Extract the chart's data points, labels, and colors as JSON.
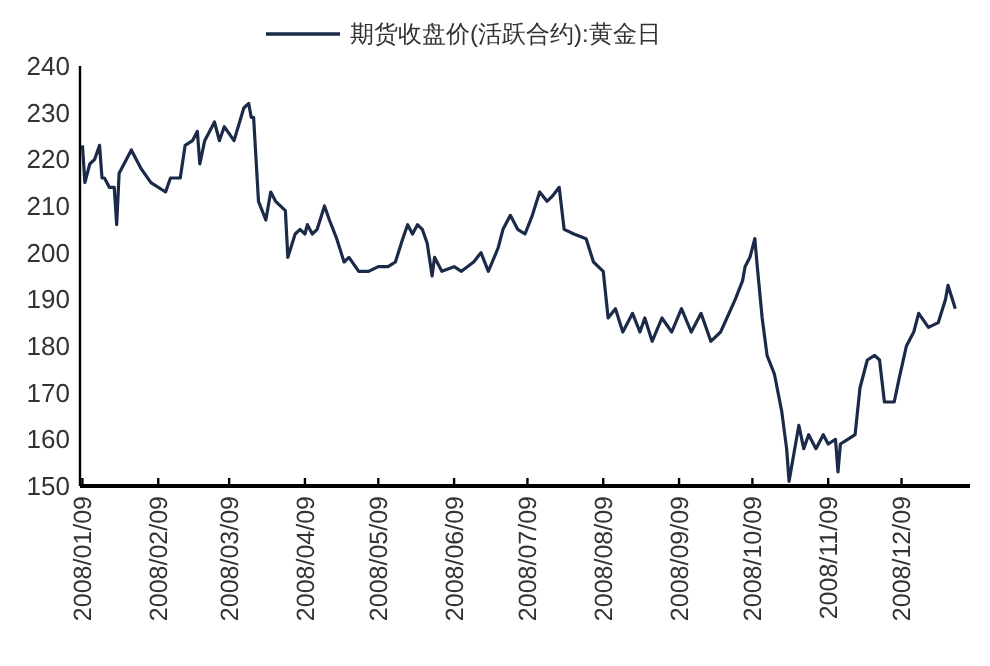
{
  "chart_data": {
    "type": "line",
    "legend": "top",
    "grid": false,
    "xlim": [
      "2008-01-08",
      "2009-01-06"
    ],
    "xticks": [
      {
        "value": "2008-01-09",
        "label": "2008/01/09"
      },
      {
        "value": "2008-02-09",
        "label": "2008/02/09"
      },
      {
        "value": "2008-03-09",
        "label": "2008/03/09"
      },
      {
        "value": "2008-04-09",
        "label": "2008/04/09"
      },
      {
        "value": "2008-05-09",
        "label": "2008/05/09"
      },
      {
        "value": "2008-06-09",
        "label": "2008/06/09"
      },
      {
        "value": "2008-07-09",
        "label": "2008/07/09"
      },
      {
        "value": "2008-08-09",
        "label": "2008/08/09"
      },
      {
        "value": "2008-09-09",
        "label": "2008/09/09"
      },
      {
        "value": "2008-10-09",
        "label": "2008/10/09"
      },
      {
        "value": "2008-11-09",
        "label": "2008/11/09"
      },
      {
        "value": "2008-12-09",
        "label": "2008/12/09"
      }
    ],
    "ylim": [
      150,
      240
    ],
    "yticks": [
      150,
      160,
      170,
      180,
      190,
      200,
      210,
      220,
      230,
      240
    ],
    "x": [
      "2008-01-09",
      "2008-01-10",
      "2008-01-12",
      "2008-01-14",
      "2008-01-16",
      "2008-01-17",
      "2008-01-18",
      "2008-01-20",
      "2008-01-22",
      "2008-01-23",
      "2008-01-24",
      "2008-01-26",
      "2008-01-29",
      "2008-02-02",
      "2008-02-06",
      "2008-02-12",
      "2008-02-14",
      "2008-02-18",
      "2008-02-20",
      "2008-02-23",
      "2008-02-25",
      "2008-02-26",
      "2008-02-28",
      "2008-03-03",
      "2008-03-05",
      "2008-03-07",
      "2008-03-11",
      "2008-03-15",
      "2008-03-17",
      "2008-03-18",
      "2008-03-19",
      "2008-03-21",
      "2008-03-24",
      "2008-03-26",
      "2008-03-28",
      "2008-04-01",
      "2008-04-02",
      "2008-04-05",
      "2008-04-07",
      "2008-04-09",
      "2008-04-10",
      "2008-04-12",
      "2008-04-14",
      "2008-04-17",
      "2008-04-19",
      "2008-04-22",
      "2008-04-25",
      "2008-04-27",
      "2008-05-01",
      "2008-05-05",
      "2008-05-09",
      "2008-05-13",
      "2008-05-16",
      "2008-05-19",
      "2008-05-21",
      "2008-05-23",
      "2008-05-25",
      "2008-05-27",
      "2008-05-29",
      "2008-05-31",
      "2008-06-01",
      "2008-06-04",
      "2008-06-09",
      "2008-06-12",
      "2008-06-17",
      "2008-06-20",
      "2008-06-23",
      "2008-06-27",
      "2008-06-29",
      "2008-07-02",
      "2008-07-05",
      "2008-07-08",
      "2008-07-11",
      "2008-07-14",
      "2008-07-17",
      "2008-07-19",
      "2008-07-22",
      "2008-07-24",
      "2008-07-28",
      "2008-08-02",
      "2008-08-05",
      "2008-08-09",
      "2008-08-11",
      "2008-08-14",
      "2008-08-17",
      "2008-08-21",
      "2008-08-24",
      "2008-08-26",
      "2008-08-29",
      "2008-09-02",
      "2008-09-06",
      "2008-09-10",
      "2008-09-14",
      "2008-09-18",
      "2008-09-22",
      "2008-09-26",
      "2008-10-02",
      "2008-10-05",
      "2008-10-06",
      "2008-10-08",
      "2008-10-10",
      "2008-10-11",
      "2008-10-13",
      "2008-10-15",
      "2008-10-18",
      "2008-10-21",
      "2008-10-23",
      "2008-10-24",
      "2008-10-26",
      "2008-10-28",
      "2008-10-30",
      "2008-11-01",
      "2008-11-04",
      "2008-11-07",
      "2008-11-09",
      "2008-11-12",
      "2008-11-13",
      "2008-11-14",
      "2008-11-17",
      "2008-11-20",
      "2008-11-22",
      "2008-11-25",
      "2008-11-28",
      "2008-11-30",
      "2008-12-02",
      "2008-12-06",
      "2008-12-08",
      "2008-12-11",
      "2008-12-14",
      "2008-12-16",
      "2008-12-20",
      "2008-12-24",
      "2008-12-27",
      "2008-12-28",
      "2008-12-31"
    ],
    "series": [
      {
        "name": "期货收盘价(活跃合约):黄金日",
        "color": "#1b2a48",
        "values": [
          223,
          215,
          219,
          220,
          223,
          216,
          216,
          214,
          214,
          206,
          217,
          219,
          222,
          218,
          215,
          213,
          216,
          216,
          223,
          224,
          226,
          219,
          224,
          228,
          224,
          227,
          224,
          231,
          232,
          229,
          229,
          211,
          207,
          213,
          211,
          209,
          199,
          204,
          205,
          204,
          206,
          204,
          205,
          210,
          207,
          203,
          198,
          199,
          196,
          196,
          197,
          197,
          198,
          203,
          206,
          204,
          206,
          205,
          202,
          195,
          199,
          196,
          197,
          196,
          198,
          200,
          196,
          201,
          205,
          208,
          205,
          204,
          208,
          213,
          211,
          212,
          214,
          205,
          204,
          203,
          198,
          196,
          186,
          188,
          183,
          187,
          183,
          186,
          181,
          186,
          183,
          188,
          183,
          187,
          181,
          183,
          190,
          194,
          197,
          199,
          203,
          197,
          186,
          178,
          174,
          166,
          158,
          151,
          157,
          163,
          158,
          161,
          158,
          161,
          159,
          160,
          153,
          159,
          160,
          161,
          171,
          177,
          178,
          177,
          168,
          168,
          173,
          180,
          183,
          187,
          184,
          185,
          190,
          193,
          188
        ]
      }
    ]
  }
}
